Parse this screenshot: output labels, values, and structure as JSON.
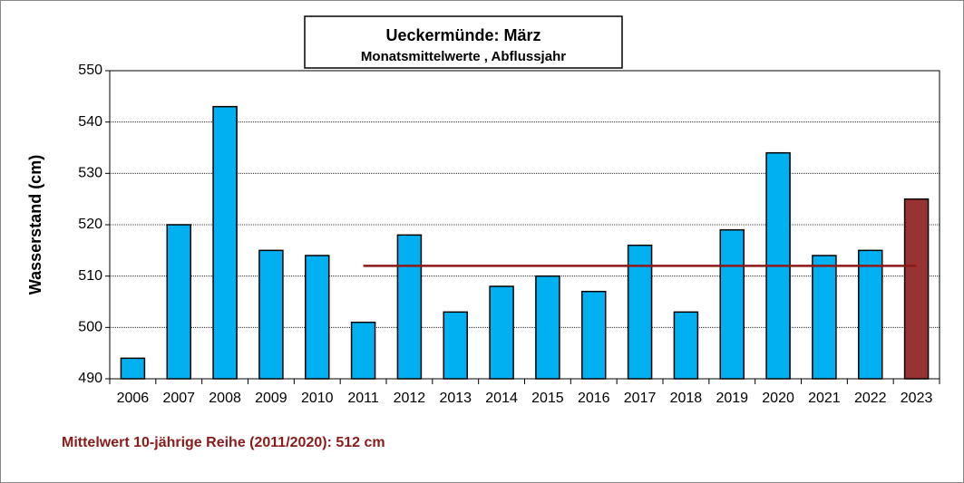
{
  "chart_data": {
    "type": "bar",
    "title": "Ueckermünde: März",
    "subtitle": "Monatsmittelwerte , Abflussjahr",
    "y_label": "Wasserstand (cm)",
    "annotation": "Mittelwert 10-jährige Reihe (2011/2020): 512  cm",
    "categories": [
      "2006",
      "2007",
      "2008",
      "2009",
      "2010",
      "2011",
      "2012",
      "2013",
      "2014",
      "2015",
      "2016",
      "2017",
      "2018",
      "2019",
      "2020",
      "2021",
      "2022",
      "2023"
    ],
    "values": [
      494,
      520,
      543,
      515,
      514,
      501,
      518,
      503,
      508,
      510,
      507,
      516,
      503,
      519,
      534,
      514,
      515,
      525
    ],
    "colors": [
      "#00b0f0",
      "#00b0f0",
      "#00b0f0",
      "#00b0f0",
      "#00b0f0",
      "#00b0f0",
      "#00b0f0",
      "#00b0f0",
      "#00b0f0",
      "#00b0f0",
      "#00b0f0",
      "#00b0f0",
      "#00b0f0",
      "#00b0f0",
      "#00b0f0",
      "#00b0f0",
      "#00b0f0",
      "#993333"
    ],
    "mean_values": [
      null,
      null,
      null,
      null,
      null,
      512,
      512,
      512,
      512,
      512,
      512,
      512,
      512,
      512,
      512,
      512,
      512,
      512
    ],
    "mean_color": "#8b1a1a",
    "ylim": [
      490,
      550
    ],
    "yticks": [
      490,
      500,
      510,
      520,
      530,
      540,
      550
    ],
    "grid": true
  }
}
